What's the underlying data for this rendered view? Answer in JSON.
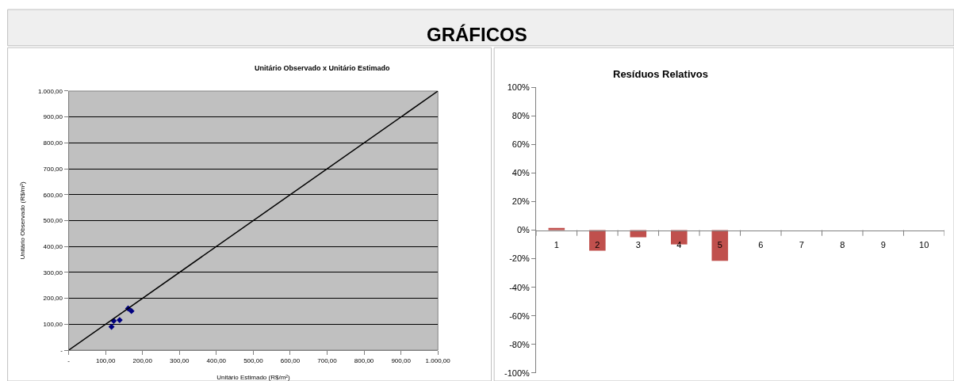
{
  "chart_data": [
    {
      "type": "scatter",
      "title": "Unitário Observado x Unitário Estimado",
      "xlabel": "Unitário Estimado (R$/m²)",
      "ylabel": "Unitário Observado (R$/m²)",
      "annotations": [
        "GRÁFICOS"
      ],
      "x": [
        116,
        122,
        138,
        161,
        170
      ],
      "series": [
        {
          "type": "scatter",
          "color": "#000080",
          "marker": "diamond",
          "values": [
            90,
            113,
            116,
            161,
            151
          ]
        },
        {
          "type": "line",
          "color": "#000000",
          "marker": "none",
          "x": [
            0,
            1000
          ],
          "values": [
            0,
            1000
          ]
        }
      ],
      "xlim": [
        0,
        1000
      ],
      "ylim": [
        0,
        1000
      ],
      "xticks": [
        {
          "value": 0,
          "label": "-"
        },
        {
          "value": 100,
          "label": "100,00"
        },
        {
          "value": 200,
          "label": "200,00"
        },
        {
          "value": 300,
          "label": "300,00"
        },
        {
          "value": 400,
          "label": "400,00"
        },
        {
          "value": 500,
          "label": "500,00"
        },
        {
          "value": 600,
          "label": "600,00"
        },
        {
          "value": 700,
          "label": "700,00"
        },
        {
          "value": 800,
          "label": "800,00"
        },
        {
          "value": 900,
          "label": "900,00"
        },
        {
          "value": 1000,
          "label": "1.000,00"
        }
      ],
      "yticks": [
        {
          "value": 0,
          "label": "-"
        },
        {
          "value": 100,
          "label": "100,00"
        },
        {
          "value": 200,
          "label": "200,00"
        },
        {
          "value": 300,
          "label": "300,00"
        },
        {
          "value": 400,
          "label": "400,00"
        },
        {
          "value": 500,
          "label": "500,00"
        },
        {
          "value": 600,
          "label": "600,00"
        },
        {
          "value": 700,
          "label": "700,00"
        },
        {
          "value": 800,
          "label": "800,00"
        },
        {
          "value": 900,
          "label": "900,00"
        },
        {
          "value": 1000,
          "label": "1.000,00"
        }
      ],
      "grid": "y"
    },
    {
      "type": "bar",
      "title": "Resíduos Relativos",
      "categories": [
        "1",
        "2",
        "3",
        "4",
        "5",
        "6",
        "7",
        "8",
        "9",
        "10"
      ],
      "series": [
        {
          "color": "#c0504d",
          "values": [
            1.5,
            -14.4,
            -5,
            -10,
            -21.5,
            null,
            null,
            null,
            null,
            null
          ]
        }
      ],
      "ylim": [
        -100,
        100
      ],
      "yticks": [
        {
          "value": -100,
          "label": "-100%"
        },
        {
          "value": -80,
          "label": "-80%"
        },
        {
          "value": -60,
          "label": "-60%"
        },
        {
          "value": -40,
          "label": "-40%"
        },
        {
          "value": -20,
          "label": "-20%"
        },
        {
          "value": 0,
          "label": "0%"
        },
        {
          "value": 20,
          "label": "20%"
        },
        {
          "value": 40,
          "label": "40%"
        },
        {
          "value": 60,
          "label": "60%"
        },
        {
          "value": 80,
          "label": "80%"
        },
        {
          "value": 100,
          "label": "100%"
        }
      ],
      "grid": false
    }
  ]
}
